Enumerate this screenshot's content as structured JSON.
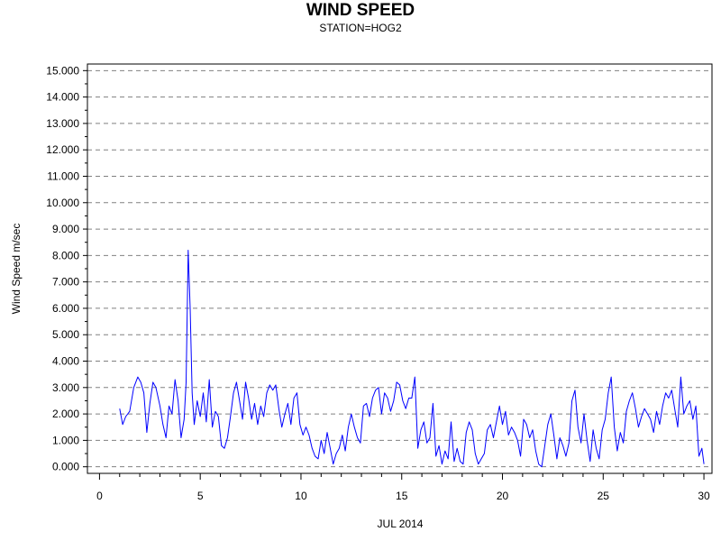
{
  "chart_data": {
    "type": "line",
    "title": "WIND SPEED",
    "subtitle": "STATION=HOG2",
    "xlabel": "JUL 2014",
    "ylabel": "Wind Speed m/sec",
    "xlim": [
      -0.6,
      30.4
    ],
    "ylim": [
      -0.25,
      15.25
    ],
    "x_ticks": [
      0,
      5,
      10,
      15,
      20,
      25,
      30
    ],
    "x_tick_labels": [
      "0",
      "5",
      "10",
      "15",
      "20",
      "25",
      "30"
    ],
    "y_ticks": [
      0,
      1,
      2,
      3,
      4,
      5,
      6,
      7,
      8,
      9,
      10,
      11,
      12,
      13,
      14,
      15
    ],
    "y_tick_labels": [
      "0.000",
      "1.000",
      "2.000",
      "3.000",
      "4.000",
      "5.000",
      "6.000",
      "7.000",
      "8.000",
      "9.000",
      "10.000",
      "11.000",
      "12.000",
      "13.000",
      "14.000",
      "15.000"
    ],
    "grid": "horizontal dashed at each y tick",
    "line_color": "#0000ff",
    "series": [
      {
        "x": [
          1.0,
          1.15,
          1.3,
          1.5,
          1.7,
          1.9,
          2.05,
          2.2,
          2.35,
          2.5,
          2.65,
          2.8,
          3.0,
          3.15,
          3.3,
          3.45,
          3.6,
          3.75,
          3.9,
          4.05,
          4.2,
          4.3,
          4.4,
          4.5,
          4.6,
          4.7,
          4.85,
          5.0,
          5.15,
          5.3,
          5.45,
          5.6,
          5.75,
          5.9,
          6.05,
          6.2,
          6.35,
          6.5,
          6.65,
          6.8,
          6.95,
          7.1,
          7.25,
          7.4,
          7.55,
          7.7,
          7.85,
          8.0,
          8.15,
          8.3,
          8.45,
          8.6,
          8.75,
          8.9,
          9.05,
          9.2,
          9.35,
          9.5,
          9.65,
          9.8,
          9.95,
          10.1,
          10.25,
          10.4,
          10.55,
          10.7,
          10.85,
          11.0,
          11.15,
          11.3,
          11.45,
          11.6,
          11.75,
          11.9,
          12.05,
          12.2,
          12.35,
          12.5,
          12.65,
          12.8,
          12.95,
          13.1,
          13.25,
          13.4,
          13.55,
          13.7,
          13.85,
          14.0,
          14.15,
          14.3,
          14.45,
          14.6,
          14.75,
          14.9,
          15.05,
          15.2,
          15.35,
          15.5,
          15.65,
          15.8,
          15.95,
          16.1,
          16.25,
          16.4,
          16.55,
          16.7,
          16.85,
          17.0,
          17.15,
          17.3,
          17.45,
          17.6,
          17.75,
          17.9,
          18.05,
          18.2,
          18.35,
          18.5,
          18.65,
          18.8,
          18.95,
          19.1,
          19.25,
          19.4,
          19.55,
          19.7,
          19.85,
          20.0,
          20.15,
          20.3,
          20.45,
          20.6,
          20.75,
          20.9,
          21.05,
          21.2,
          21.35,
          21.5,
          21.65,
          21.8,
          21.95,
          22.1,
          22.25,
          22.4,
          22.55,
          22.7,
          22.85,
          23.0,
          23.15,
          23.3,
          23.45,
          23.6,
          23.75,
          23.9,
          24.05,
          24.2,
          24.35,
          24.5,
          24.65,
          24.8,
          24.95,
          25.1,
          25.25,
          25.4,
          25.55,
          25.7,
          25.85,
          26.0,
          26.15,
          26.3,
          26.45,
          26.6,
          26.75,
          26.9,
          27.05,
          27.2,
          27.35,
          27.5,
          27.65,
          27.8,
          27.95,
          28.1,
          28.25,
          28.4,
          28.55,
          28.7,
          28.85,
          29.0,
          29.15,
          29.3,
          29.45,
          29.6,
          29.75,
          29.9,
          30.0
        ],
        "y": [
          2.2,
          1.6,
          1.9,
          2.1,
          3.0,
          3.4,
          3.2,
          2.8,
          1.3,
          2.4,
          3.2,
          3.0,
          2.3,
          1.6,
          1.1,
          2.3,
          2.0,
          3.3,
          2.5,
          1.1,
          1.8,
          3.2,
          8.2,
          6.0,
          2.8,
          1.6,
          2.5,
          1.9,
          2.8,
          1.7,
          3.3,
          1.5,
          2.1,
          1.9,
          0.8,
          0.7,
          1.1,
          1.9,
          2.8,
          3.2,
          2.5,
          1.8,
          3.2,
          2.6,
          1.8,
          2.4,
          1.6,
          2.3,
          1.9,
          2.8,
          3.1,
          2.9,
          3.1,
          2.2,
          1.5,
          2.0,
          2.4,
          1.6,
          2.6,
          2.8,
          1.6,
          1.2,
          1.5,
          1.2,
          0.7,
          0.4,
          0.3,
          1.0,
          0.5,
          1.3,
          0.7,
          0.1,
          0.5,
          0.7,
          1.2,
          0.6,
          1.5,
          2.0,
          1.5,
          1.1,
          0.9,
          2.3,
          2.4,
          1.9,
          2.6,
          2.9,
          3.0,
          2.0,
          2.8,
          2.6,
          2.1,
          2.5,
          3.2,
          3.1,
          2.5,
          2.2,
          2.6,
          2.6,
          3.4,
          0.7,
          1.4,
          1.7,
          0.9,
          1.1,
          2.4,
          0.4,
          0.8,
          0.1,
          0.6,
          0.3,
          1.7,
          0.2,
          0.7,
          0.2,
          0.1,
          1.3,
          1.7,
          1.4,
          0.5,
          0.1,
          0.3,
          0.5,
          1.4,
          1.6,
          1.1,
          1.7,
          2.3,
          1.6,
          2.1,
          1.2,
          1.5,
          1.3,
          1.0,
          0.4,
          1.8,
          1.6,
          1.1,
          1.4,
          0.6,
          0.1,
          0.0,
          0.8,
          1.6,
          2.0,
          1.2,
          0.3,
          1.1,
          0.8,
          0.4,
          0.9,
          2.5,
          2.9,
          1.5,
          0.9,
          2.0,
          1.0,
          0.2,
          1.4,
          0.7,
          0.3,
          1.4,
          1.8,
          2.8,
          3.4,
          1.5,
          0.6,
          1.3,
          0.9,
          2.1,
          2.5,
          2.8,
          2.2,
          1.5,
          1.9,
          2.2,
          2.0,
          1.8,
          1.3,
          2.1,
          1.6,
          2.3,
          2.8,
          2.6,
          2.9,
          2.2,
          1.5,
          3.4,
          2.0,
          2.3,
          2.5,
          1.8,
          2.3,
          0.4,
          0.7,
          0.1
        ]
      }
    ]
  }
}
